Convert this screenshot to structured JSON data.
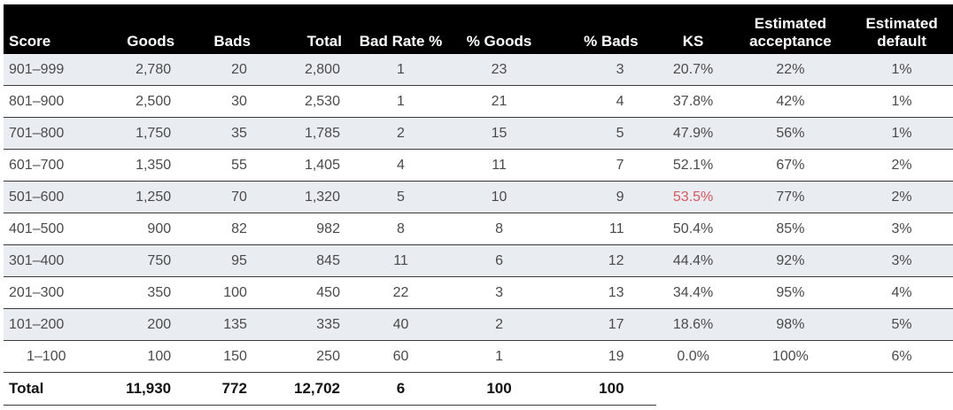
{
  "columns": [
    "Score",
    "Goods",
    "Bads",
    "Total",
    "Bad Rate %",
    "% Goods",
    "% Bads",
    "KS",
    [
      "Estimated",
      "acceptance"
    ],
    [
      "Estimated",
      "default"
    ]
  ],
  "rows": [
    [
      "901–999",
      "2,780",
      "20",
      "2,800",
      "1",
      "23",
      "3",
      "20.7%",
      "22%",
      "1%"
    ],
    [
      "801–900",
      "2,500",
      "30",
      "2,530",
      "1",
      "21",
      "4",
      "37.8%",
      "42%",
      "1%"
    ],
    [
      "701–800",
      "1,750",
      "35",
      "1,785",
      "2",
      "15",
      "5",
      "47.9%",
      "56%",
      "1%"
    ],
    [
      "601–700",
      "1,350",
      "55",
      "1,405",
      "4",
      "11",
      "7",
      "52.1%",
      "67%",
      "2%"
    ],
    [
      "501–600",
      "1,250",
      "70",
      "1,320",
      "5",
      "10",
      "9",
      "53.5%",
      "77%",
      "2%"
    ],
    [
      "401–500",
      "900",
      "82",
      "982",
      "8",
      "8",
      "11",
      "50.4%",
      "85%",
      "3%"
    ],
    [
      "301–400",
      "750",
      "95",
      "845",
      "11",
      "6",
      "12",
      "44.4%",
      "92%",
      "3%"
    ],
    [
      "201–300",
      "350",
      "100",
      "450",
      "22",
      "3",
      "13",
      "34.4%",
      "95%",
      "4%"
    ],
    [
      "101–200",
      "200",
      "135",
      "335",
      "40",
      "2",
      "17",
      "18.6%",
      "98%",
      "5%"
    ],
    [
      "1–100",
      "100",
      "150",
      "250",
      "60",
      "1",
      "19",
      "0.0%",
      "100%",
      "6%"
    ]
  ],
  "total_row": [
    "Total",
    "11,930",
    "772",
    "12,702",
    "6",
    "100",
    "100"
  ],
  "highlight": {
    "row": 4,
    "col": 7,
    "color": "#d8565e"
  },
  "colors": {
    "header_bg": "#000000",
    "header_text": "#ffffff",
    "stripe": "#e9edf1"
  }
}
